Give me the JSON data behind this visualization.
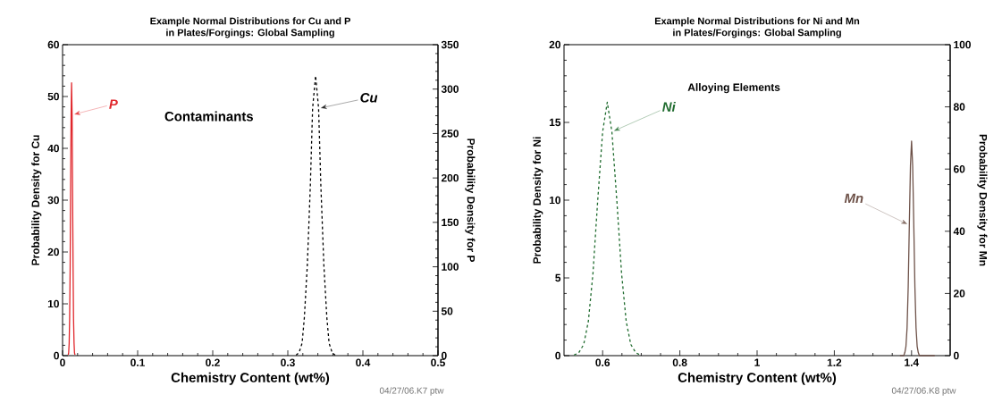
{
  "chart_data": [
    {
      "type": "line",
      "title": "Example Normal Distributions for Cu and P",
      "subtitle": "in Plates/Forgings: Global Sampling",
      "xlabel": "Chemistry Content (wt%)",
      "ylabel": "Probability Density for Cu",
      "y2label": "Probability Density for P",
      "xlim": [
        0,
        0.5
      ],
      "xticks": [
        0,
        0.1,
        0.2,
        0.3,
        0.4,
        0.5
      ],
      "ylim": [
        0,
        60
      ],
      "yticks": [
        0,
        10,
        20,
        30,
        40,
        50,
        60
      ],
      "y2lim": [
        0,
        350
      ],
      "y2ticks": [
        0,
        50,
        100,
        150,
        200,
        250,
        300,
        350
      ],
      "annotations": [
        "Contaminants",
        "04/27/06.K7 ptw"
      ],
      "series": [
        {
          "name": "Cu",
          "color": "#000000",
          "line_style": "dashed",
          "x": [
            0.311,
            0.315,
            0.319,
            0.322,
            0.326,
            0.33,
            0.333,
            0.337,
            0.341,
            0.344,
            0.348,
            0.352,
            0.355,
            0.359,
            0.363
          ],
          "values": [
            0.1,
            0.6,
            2.4,
            7.3,
            17.5,
            32.8,
            47.7,
            54,
            47.7,
            32.8,
            17.5,
            7.3,
            2.4,
            0.6,
            0.1
          ]
        },
        {
          "name": "P",
          "color": "#e0262b",
          "line_style": "solid",
          "axis": "y2",
          "x": [
            0.0075,
            0.0081,
            0.0088,
            0.0094,
            0.0101,
            0.0107,
            0.0114,
            0.012,
            0.0127,
            0.0133,
            0.014,
            0.0146,
            0.0153,
            0.0159,
            0.0166
          ],
          "values": [
            1,
            3,
            14,
            42,
            100,
            186,
            271,
            307,
            271,
            186,
            100,
            42,
            14,
            3,
            1
          ]
        }
      ]
    },
    {
      "type": "line",
      "title": "Example Normal Distributions for Ni and Mn",
      "subtitle": "in Plates/Forgings: Global Sampling",
      "xlabel": "Chemistry Content (wt%)",
      "ylabel": "Probability Density for Ni",
      "y2label": "Probability Density for Mn",
      "xlim": [
        0.5,
        1.5
      ],
      "xticks": [
        0.6,
        0.8,
        1,
        1.2,
        1.4
      ],
      "ylim": [
        0,
        20
      ],
      "yticks": [
        0,
        5,
        10,
        15,
        20
      ],
      "y2lim": [
        0,
        100
      ],
      "y2ticks": [
        0,
        20,
        40,
        60,
        80,
        100
      ],
      "annotations": [
        "Alloying  Elements",
        "04/27/06.K8 ptw"
      ],
      "series": [
        {
          "name": "Ni",
          "color": "#1f6b2e",
          "line_style": "dashed",
          "x": [
            0.526,
            0.538,
            0.551,
            0.563,
            0.575,
            0.587,
            0.6,
            0.612,
            0.624,
            0.637,
            0.649,
            0.661,
            0.673,
            0.686,
            0.698
          ],
          "values": [
            0.04,
            0.18,
            0.72,
            2.2,
            5.3,
            9.9,
            14.4,
            16.3,
            14.4,
            9.9,
            5.3,
            2.2,
            0.72,
            0.18,
            0.04
          ]
        },
        {
          "name": "Mn",
          "color": "#6e5249",
          "line_style": "solid",
          "axis": "y2",
          "x": [
            1.37,
            1.3797,
            1.3826,
            1.3855,
            1.3884,
            1.3913,
            1.3942,
            1.3971,
            1.4,
            1.4029,
            1.4058,
            1.4087,
            1.4116,
            1.4145,
            1.4174,
            1.4203,
            1.46
          ],
          "values": [
            0,
            0,
            1,
            3,
            9,
            22,
            42,
            61,
            69,
            61,
            42,
            22,
            9,
            3,
            1,
            0,
            0
          ]
        }
      ]
    }
  ]
}
